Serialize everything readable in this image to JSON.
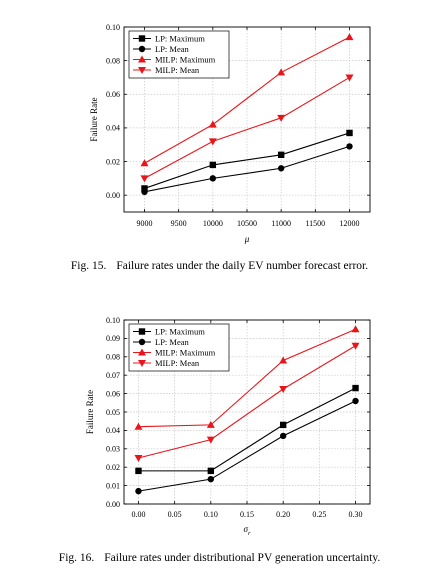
{
  "figures": [
    {
      "caption_number": "Fig. 15.",
      "caption_text": "Failure rates under the daily EV number forecast error."
    },
    {
      "caption_number": "Fig. 16.",
      "caption_text": "Failure rates under distributional PV generation uncertainty."
    }
  ],
  "colors": {
    "black": "#000000",
    "red": "#e8161b",
    "grid": "#c8c8c8"
  },
  "chart_data": [
    {
      "type": "line",
      "xlabel": "μ",
      "ylabel": "Failure Rate",
      "x": [
        9000,
        10000,
        11000,
        12000
      ],
      "xlim": [
        8700,
        12300
      ],
      "ylim": [
        -0.01,
        0.1
      ],
      "xticks": [
        9000,
        9500,
        10000,
        10500,
        11000,
        11500,
        12000
      ],
      "yticks": [
        0.0,
        0.02,
        0.04,
        0.06,
        0.08,
        0.1
      ],
      "yticklabels": [
        "0.00",
        "0.02",
        "0.04",
        "0.06",
        "0.08",
        "0.10"
      ],
      "grid": true,
      "legend_position": "top-left",
      "series": [
        {
          "name": "LP: Maximum",
          "values": [
            0.004,
            0.018,
            0.024,
            0.037
          ],
          "color": "black",
          "marker": "square"
        },
        {
          "name": "LP: Mean",
          "values": [
            0.002,
            0.01,
            0.016,
            0.029
          ],
          "color": "black",
          "marker": "circle"
        },
        {
          "name": "MILP: Maximum",
          "values": [
            0.019,
            0.042,
            0.073,
            0.094
          ],
          "color": "red",
          "marker": "triangle-up"
        },
        {
          "name": "MILP: Mean",
          "values": [
            0.01,
            0.032,
            0.046,
            0.07
          ],
          "color": "red",
          "marker": "triangle-down"
        }
      ]
    },
    {
      "type": "line",
      "xlabel": "σ",
      "xlabel_sub": "r",
      "ylabel": "Failure Rate",
      "x": [
        0.0,
        0.1,
        0.2,
        0.3
      ],
      "xlim": [
        -0.02,
        0.32
      ],
      "ylim": [
        0.0,
        0.1
      ],
      "xticks": [
        0.0,
        0.05,
        0.1,
        0.15,
        0.2,
        0.25,
        0.3
      ],
      "xticklabels": [
        "0.00",
        "0.05",
        "0.10",
        "0.15",
        "0.20",
        "0.25",
        "0.30"
      ],
      "yticks": [
        0.0,
        0.01,
        0.02,
        0.03,
        0.04,
        0.05,
        0.06,
        0.07,
        0.08,
        0.09,
        0.1
      ],
      "yticklabels": [
        "0.00",
        "0.01",
        "0.02",
        "0.03",
        "0.04",
        "0.05",
        "0.06",
        "0.07",
        "0.08",
        "0.09",
        "0.10"
      ],
      "grid": true,
      "legend_position": "top-left",
      "series": [
        {
          "name": "LP: Maximum",
          "values": [
            0.018,
            0.018,
            0.043,
            0.063
          ],
          "color": "black",
          "marker": "square"
        },
        {
          "name": "LP: Mean",
          "values": [
            0.007,
            0.0135,
            0.037,
            0.056
          ],
          "color": "black",
          "marker": "circle"
        },
        {
          "name": "MILP: Maximum",
          "values": [
            0.042,
            0.043,
            0.078,
            0.095
          ],
          "color": "red",
          "marker": "triangle-up"
        },
        {
          "name": "MILP: Mean",
          "values": [
            0.025,
            0.035,
            0.0625,
            0.086
          ],
          "color": "red",
          "marker": "triangle-down"
        }
      ]
    }
  ]
}
